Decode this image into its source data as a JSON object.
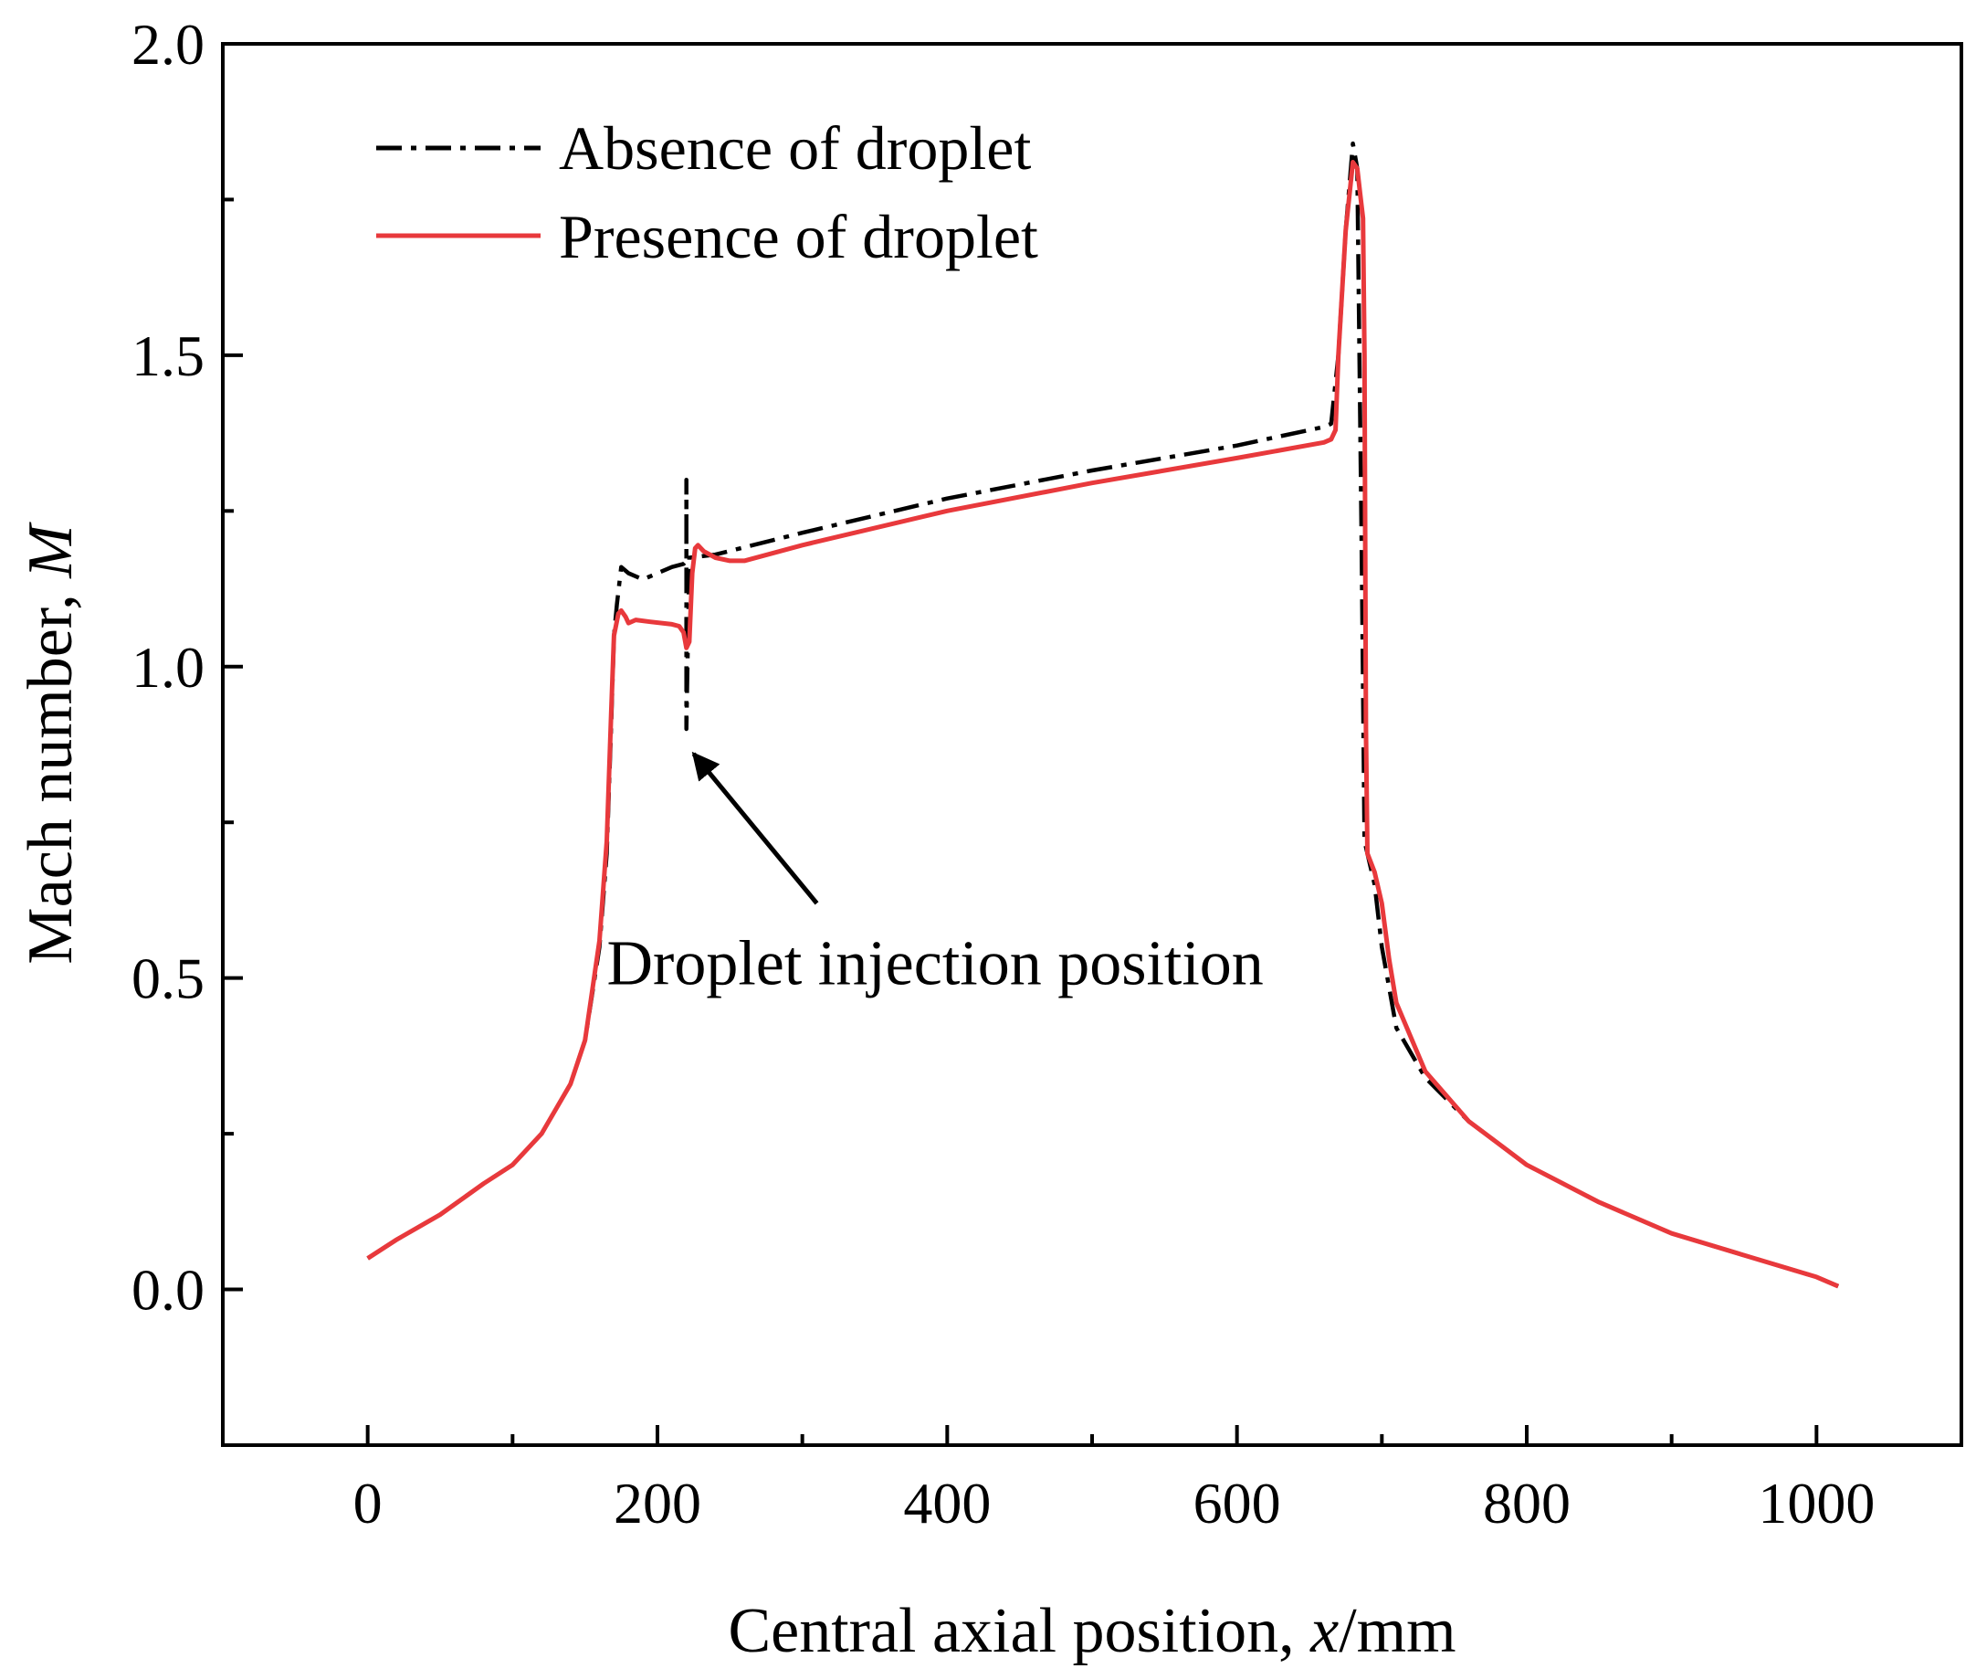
{
  "chart_data": {
    "type": "line",
    "title": "",
    "xlabel_prefix": "Central axial position, ",
    "xlabel_var": "x",
    "xlabel_unit": "/mm",
    "ylabel_prefix": "Mach number, ",
    "ylabel_var": "M",
    "xlim": [
      -100,
      1100
    ],
    "ylim": [
      -0.25,
      2.0
    ],
    "xticks": [
      0,
      200,
      400,
      600,
      800,
      1000
    ],
    "xtick_labels": [
      "0",
      "200",
      "400",
      "600",
      "800",
      "1000"
    ],
    "xminor": [
      100,
      300,
      500,
      700,
      900
    ],
    "yticks": [
      0.0,
      0.5,
      1.0,
      1.5,
      2.0
    ],
    "ytick_labels": [
      "0.0",
      "0.5",
      "1.0",
      "1.5",
      "2.0"
    ],
    "yminor": [
      -0.25,
      0.25,
      0.75,
      1.25,
      1.75
    ],
    "legend_position": "top-left",
    "series": [
      {
        "name": "Absence of droplet",
        "color": "#000000",
        "style": "dash-dot",
        "points": [
          [
            0,
            0.05
          ],
          [
            20,
            0.08
          ],
          [
            50,
            0.12
          ],
          [
            80,
            0.17
          ],
          [
            100,
            0.2
          ],
          [
            120,
            0.25
          ],
          [
            140,
            0.33
          ],
          [
            150,
            0.4
          ],
          [
            160,
            0.55
          ],
          [
            165,
            0.7
          ],
          [
            168,
            0.9
          ],
          [
            170,
            1.05
          ],
          [
            172,
            1.1
          ],
          [
            175,
            1.16
          ],
          [
            180,
            1.15
          ],
          [
            190,
            1.14
          ],
          [
            200,
            1.15
          ],
          [
            210,
            1.16
          ],
          [
            218,
            1.165
          ],
          [
            220,
            1.17
          ],
          [
            220,
            1.3
          ],
          [
            220,
            0.9
          ],
          [
            222,
            1.175
          ],
          [
            240,
            1.18
          ],
          [
            300,
            1.215
          ],
          [
            400,
            1.27
          ],
          [
            500,
            1.315
          ],
          [
            600,
            1.355
          ],
          [
            660,
            1.385
          ],
          [
            665,
            1.39
          ],
          [
            670,
            1.5
          ],
          [
            675,
            1.7
          ],
          [
            680,
            1.84
          ],
          [
            683,
            1.8
          ],
          [
            686,
            1.2
          ],
          [
            688,
            0.72
          ],
          [
            690,
            0.7
          ],
          [
            695,
            0.65
          ],
          [
            700,
            0.55
          ],
          [
            710,
            0.42
          ],
          [
            730,
            0.34
          ],
          [
            760,
            0.27
          ],
          [
            800,
            0.2
          ],
          [
            850,
            0.14
          ],
          [
            900,
            0.09
          ],
          [
            950,
            0.055
          ],
          [
            1000,
            0.02
          ],
          [
            1015,
            0.005
          ]
        ]
      },
      {
        "name": "Presence of droplet",
        "color": "#e8393c",
        "style": "solid",
        "points": [
          [
            0,
            0.05
          ],
          [
            20,
            0.08
          ],
          [
            50,
            0.12
          ],
          [
            80,
            0.17
          ],
          [
            100,
            0.2
          ],
          [
            120,
            0.25
          ],
          [
            140,
            0.33
          ],
          [
            150,
            0.4
          ],
          [
            160,
            0.56
          ],
          [
            165,
            0.72
          ],
          [
            168,
            0.92
          ],
          [
            170,
            1.05
          ],
          [
            173,
            1.085
          ],
          [
            175,
            1.09
          ],
          [
            178,
            1.08
          ],
          [
            180,
            1.07
          ],
          [
            185,
            1.075
          ],
          [
            195,
            1.072
          ],
          [
            210,
            1.068
          ],
          [
            215,
            1.065
          ],
          [
            218,
            1.055
          ],
          [
            220,
            1.03
          ],
          [
            222,
            1.04
          ],
          [
            224,
            1.15
          ],
          [
            226,
            1.19
          ],
          [
            228,
            1.195
          ],
          [
            232,
            1.185
          ],
          [
            240,
            1.175
          ],
          [
            250,
            1.17
          ],
          [
            260,
            1.17
          ],
          [
            300,
            1.195
          ],
          [
            400,
            1.25
          ],
          [
            500,
            1.295
          ],
          [
            600,
            1.335
          ],
          [
            660,
            1.36
          ],
          [
            665,
            1.365
          ],
          [
            668,
            1.38
          ],
          [
            670,
            1.5
          ],
          [
            675,
            1.7
          ],
          [
            680,
            1.81
          ],
          [
            683,
            1.8
          ],
          [
            685,
            1.76
          ],
          [
            687,
            1.72
          ],
          [
            688,
            1.5
          ],
          [
            689,
            0.9
          ],
          [
            690,
            0.7
          ],
          [
            695,
            0.67
          ],
          [
            700,
            0.62
          ],
          [
            705,
            0.53
          ],
          [
            710,
            0.46
          ],
          [
            730,
            0.35
          ],
          [
            760,
            0.27
          ],
          [
            800,
            0.2
          ],
          [
            850,
            0.14
          ],
          [
            900,
            0.09
          ],
          [
            950,
            0.055
          ],
          [
            1000,
            0.02
          ],
          [
            1015,
            0.005
          ]
        ]
      }
    ],
    "annotation": {
      "text": "Droplet injection position",
      "arrow_from": [
        310,
        0.62
      ],
      "arrow_to": [
        225,
        0.86
      ],
      "text_anchor": [
        165,
        0.49
      ]
    }
  }
}
